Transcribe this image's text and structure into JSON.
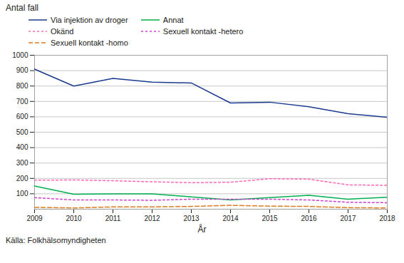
{
  "chart_data": {
    "type": "line",
    "ylabel": "Antal fall",
    "xlabel": "År",
    "caption": "Källa: Folkhälsomyndigheten",
    "x": [
      2009,
      2010,
      2011,
      2012,
      2013,
      2014,
      2015,
      2016,
      2017,
      2018
    ],
    "series": [
      {
        "name": "Via injektion av droger",
        "color": "#1a3a8f",
        "line_style": "solid",
        "values": [
          910,
          800,
          850,
          825,
          820,
          690,
          695,
          665,
          620,
          597
        ]
      },
      {
        "name": "Annat",
        "color": "#00b050",
        "line_style": "solid",
        "values": [
          150,
          97,
          100,
          100,
          80,
          60,
          75,
          90,
          65,
          78
        ]
      },
      {
        "name": "Okänd",
        "color": "#ff69b4",
        "line_style": "dotted",
        "values": [
          188,
          190,
          185,
          178,
          172,
          175,
          198,
          195,
          158,
          155
        ]
      },
      {
        "name": "Sexuell kontakt -hetero",
        "color": "#cc44cc",
        "line_style": "dotted",
        "values": [
          75,
          60,
          60,
          58,
          65,
          65,
          65,
          60,
          45,
          42
        ]
      },
      {
        "name": "Sexuell kontakt -homo",
        "color": "#e07b20",
        "line_style": "dashed",
        "values": [
          12,
          8,
          15,
          15,
          18,
          25,
          20,
          18,
          10,
          8
        ]
      }
    ],
    "xlim": [
      2009,
      2018
    ],
    "xticks": [
      2009,
      2010,
      2011,
      2012,
      2013,
      2014,
      2015,
      2016,
      2017,
      2018
    ],
    "ylim": [
      0,
      1000
    ],
    "yticks": [
      100,
      200,
      300,
      400,
      500,
      600,
      700,
      800,
      900,
      1000
    ],
    "grid": true,
    "legend": "top"
  }
}
